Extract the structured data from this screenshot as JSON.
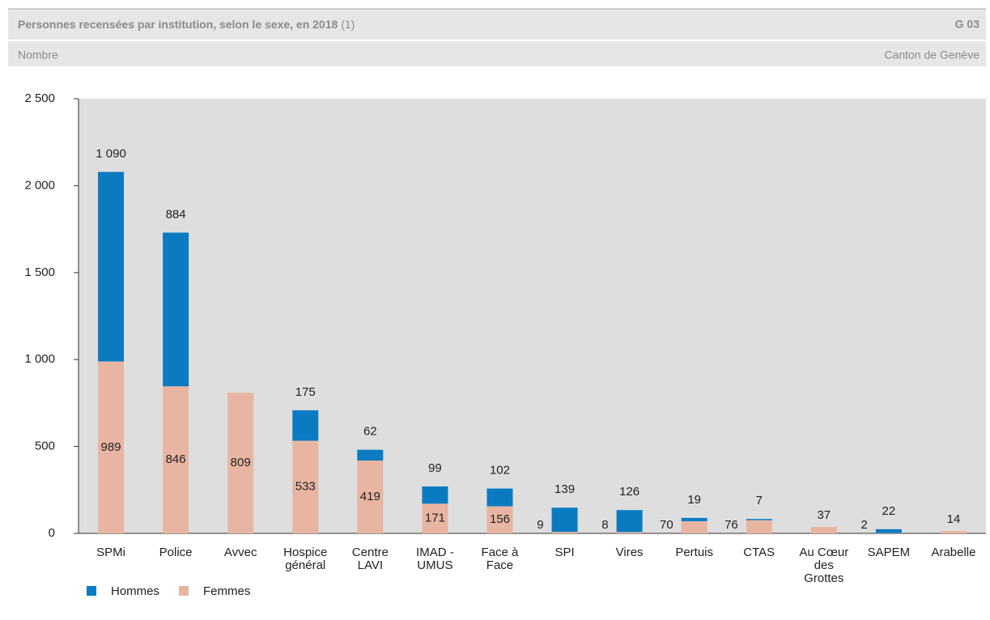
{
  "chart_data": {
    "type": "stacked_bar",
    "title": "Personnes recensées par institution, selon le sexe, en 2018",
    "title_note": "(1)",
    "code": "G 03",
    "subtitle": "Nombre",
    "source_area": "Canton de Genève",
    "categories": [
      [
        "SPMi"
      ],
      [
        "Police"
      ],
      [
        "Avvec"
      ],
      [
        "Hospice",
        "général"
      ],
      [
        "Centre",
        "LAVI"
      ],
      [
        "IMAD -",
        "UMUS"
      ],
      [
        "Face à",
        "Face"
      ],
      [
        "SPI"
      ],
      [
        "Vires"
      ],
      [
        "Pertuis"
      ],
      [
        "CTAS"
      ],
      [
        "Au Cœur",
        "des",
        "Grottes"
      ],
      [
        "SAPEM"
      ],
      [
        "Arabelle"
      ]
    ],
    "series": [
      {
        "name": "Femmes",
        "color": "#e8b5a2",
        "values": [
          989,
          846,
          809,
          533,
          419,
          171,
          156,
          9,
          8,
          70,
          76,
          37,
          2,
          14
        ]
      },
      {
        "name": "Hommes",
        "color": "#0a7bc1",
        "values": [
          1090,
          884,
          null,
          175,
          62,
          99,
          102,
          139,
          126,
          19,
          7,
          null,
          22,
          null
        ],
        "value_labels": [
          "1 090",
          "884",
          null,
          "175",
          "62",
          "99",
          "102",
          "139",
          "126",
          "19",
          "7",
          null,
          "22",
          null
        ]
      }
    ],
    "legend_order": [
      1,
      0
    ],
    "ylim": [
      0,
      2500
    ],
    "yticks": [
      0,
      500,
      {
        "value": 1000,
        "label": "1 000"
      },
      {
        "value": 1500,
        "label": "1 500"
      },
      {
        "value": 2000,
        "label": "2 000"
      },
      {
        "value": 2500,
        "label": "2 500"
      }
    ]
  }
}
